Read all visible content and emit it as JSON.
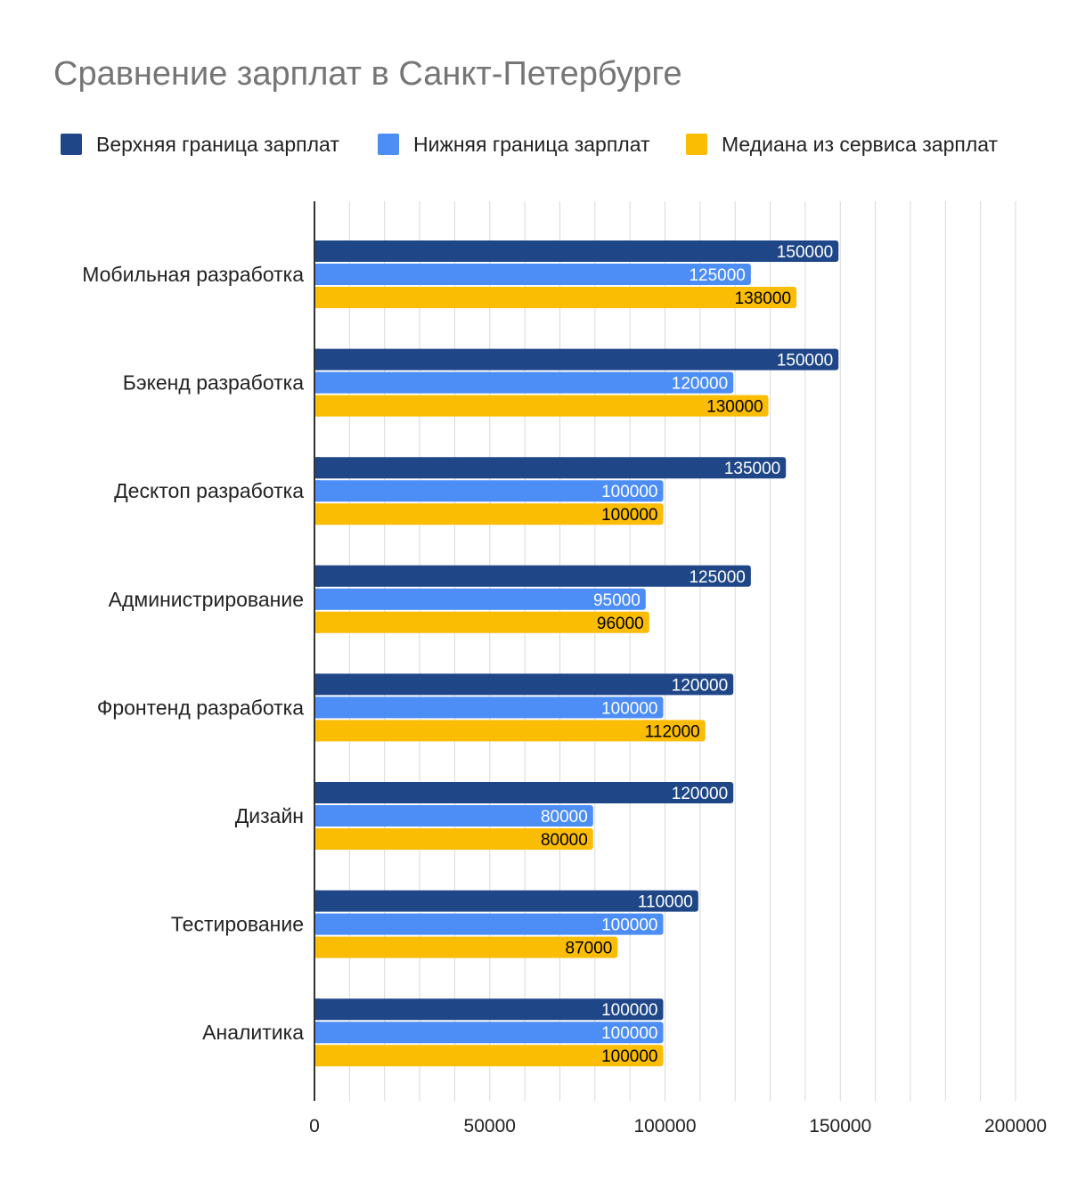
{
  "chart_data": {
    "type": "bar",
    "orientation": "horizontal",
    "title": "Сравнение зарплат в Санкт-Петербурге",
    "categories": [
      "Мобильная разработка",
      "Бэкенд разработка",
      "Десктоп разработка",
      "Администрирование",
      "Фронтенд разработка",
      "Дизайн",
      "Тестирование",
      "Аналитика"
    ],
    "series": [
      {
        "name": "Верхняя граница зарплат",
        "color": "#1f4788",
        "label_color": "#ffffff",
        "values": [
          150000,
          150000,
          135000,
          125000,
          120000,
          120000,
          110000,
          100000
        ]
      },
      {
        "name": "Нижняя граница зарплат",
        "color": "#4c8df6",
        "label_color": "#ffffff",
        "values": [
          125000,
          120000,
          100000,
          95000,
          100000,
          80000,
          100000,
          100000
        ]
      },
      {
        "name": "Медиана из сервиса зарплат",
        "color": "#fbbc04",
        "label_color": "#000000",
        "values": [
          138000,
          130000,
          100000,
          96000,
          112000,
          80000,
          87000,
          100000
        ]
      }
    ],
    "xlim": [
      0,
      200000
    ],
    "xticks": [
      "0",
      "50000",
      "100000",
      "150000",
      "200000"
    ],
    "minor_step": 10000,
    "legend_position": "top",
    "grid": true
  }
}
